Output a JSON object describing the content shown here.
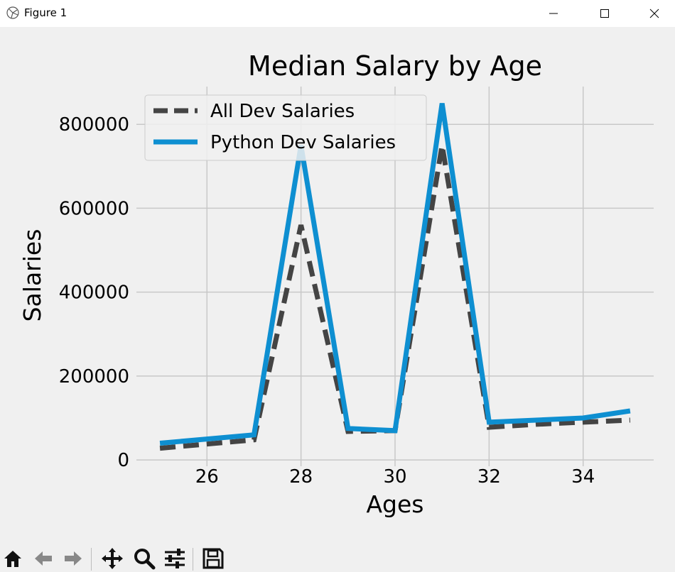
{
  "window": {
    "title": "Figure 1",
    "icons": [
      "figure-app-icon",
      "minimize-icon",
      "maximize-icon",
      "close-icon"
    ]
  },
  "toolbar": {
    "buttons": [
      "home-icon",
      "back-arrow-icon",
      "forward-arrow-icon",
      "pan-move-icon",
      "zoom-magnifier-icon",
      "configure-subplots-icon",
      "save-disk-icon"
    ]
  },
  "colors": {
    "all_dev": "#444444",
    "python_dev": "#0e8fd1",
    "grid": "#c8c8c8",
    "background": "#f0f0f0"
  },
  "chart_data": {
    "type": "line",
    "title": "Median Salary by Age",
    "xlabel": "Ages",
    "ylabel": "Salaries",
    "x": [
      25,
      26,
      27,
      28,
      29,
      30,
      31,
      32,
      33,
      34,
      35
    ],
    "xlim": [
      24.5,
      35.5
    ],
    "ylim": [
      -15000,
      890000
    ],
    "xticks": [
      "26",
      "28",
      "30",
      "32",
      "34"
    ],
    "yticks": [
      "0",
      "200000",
      "400000",
      "600000",
      "800000"
    ],
    "grid": true,
    "legend_position": "top-left",
    "series": [
      {
        "name": "All Dev Salaries",
        "style": "dashed",
        "values": [
          28000,
          38000,
          48000,
          560000,
          68000,
          70000,
          750000,
          78000,
          85000,
          90000,
          95000
        ]
      },
      {
        "name": "Python Dev Salaries",
        "style": "solid",
        "values": [
          40000,
          50000,
          60000,
          750000,
          75000,
          70000,
          850000,
          90000,
          95000,
          100000,
          117000
        ]
      }
    ]
  }
}
